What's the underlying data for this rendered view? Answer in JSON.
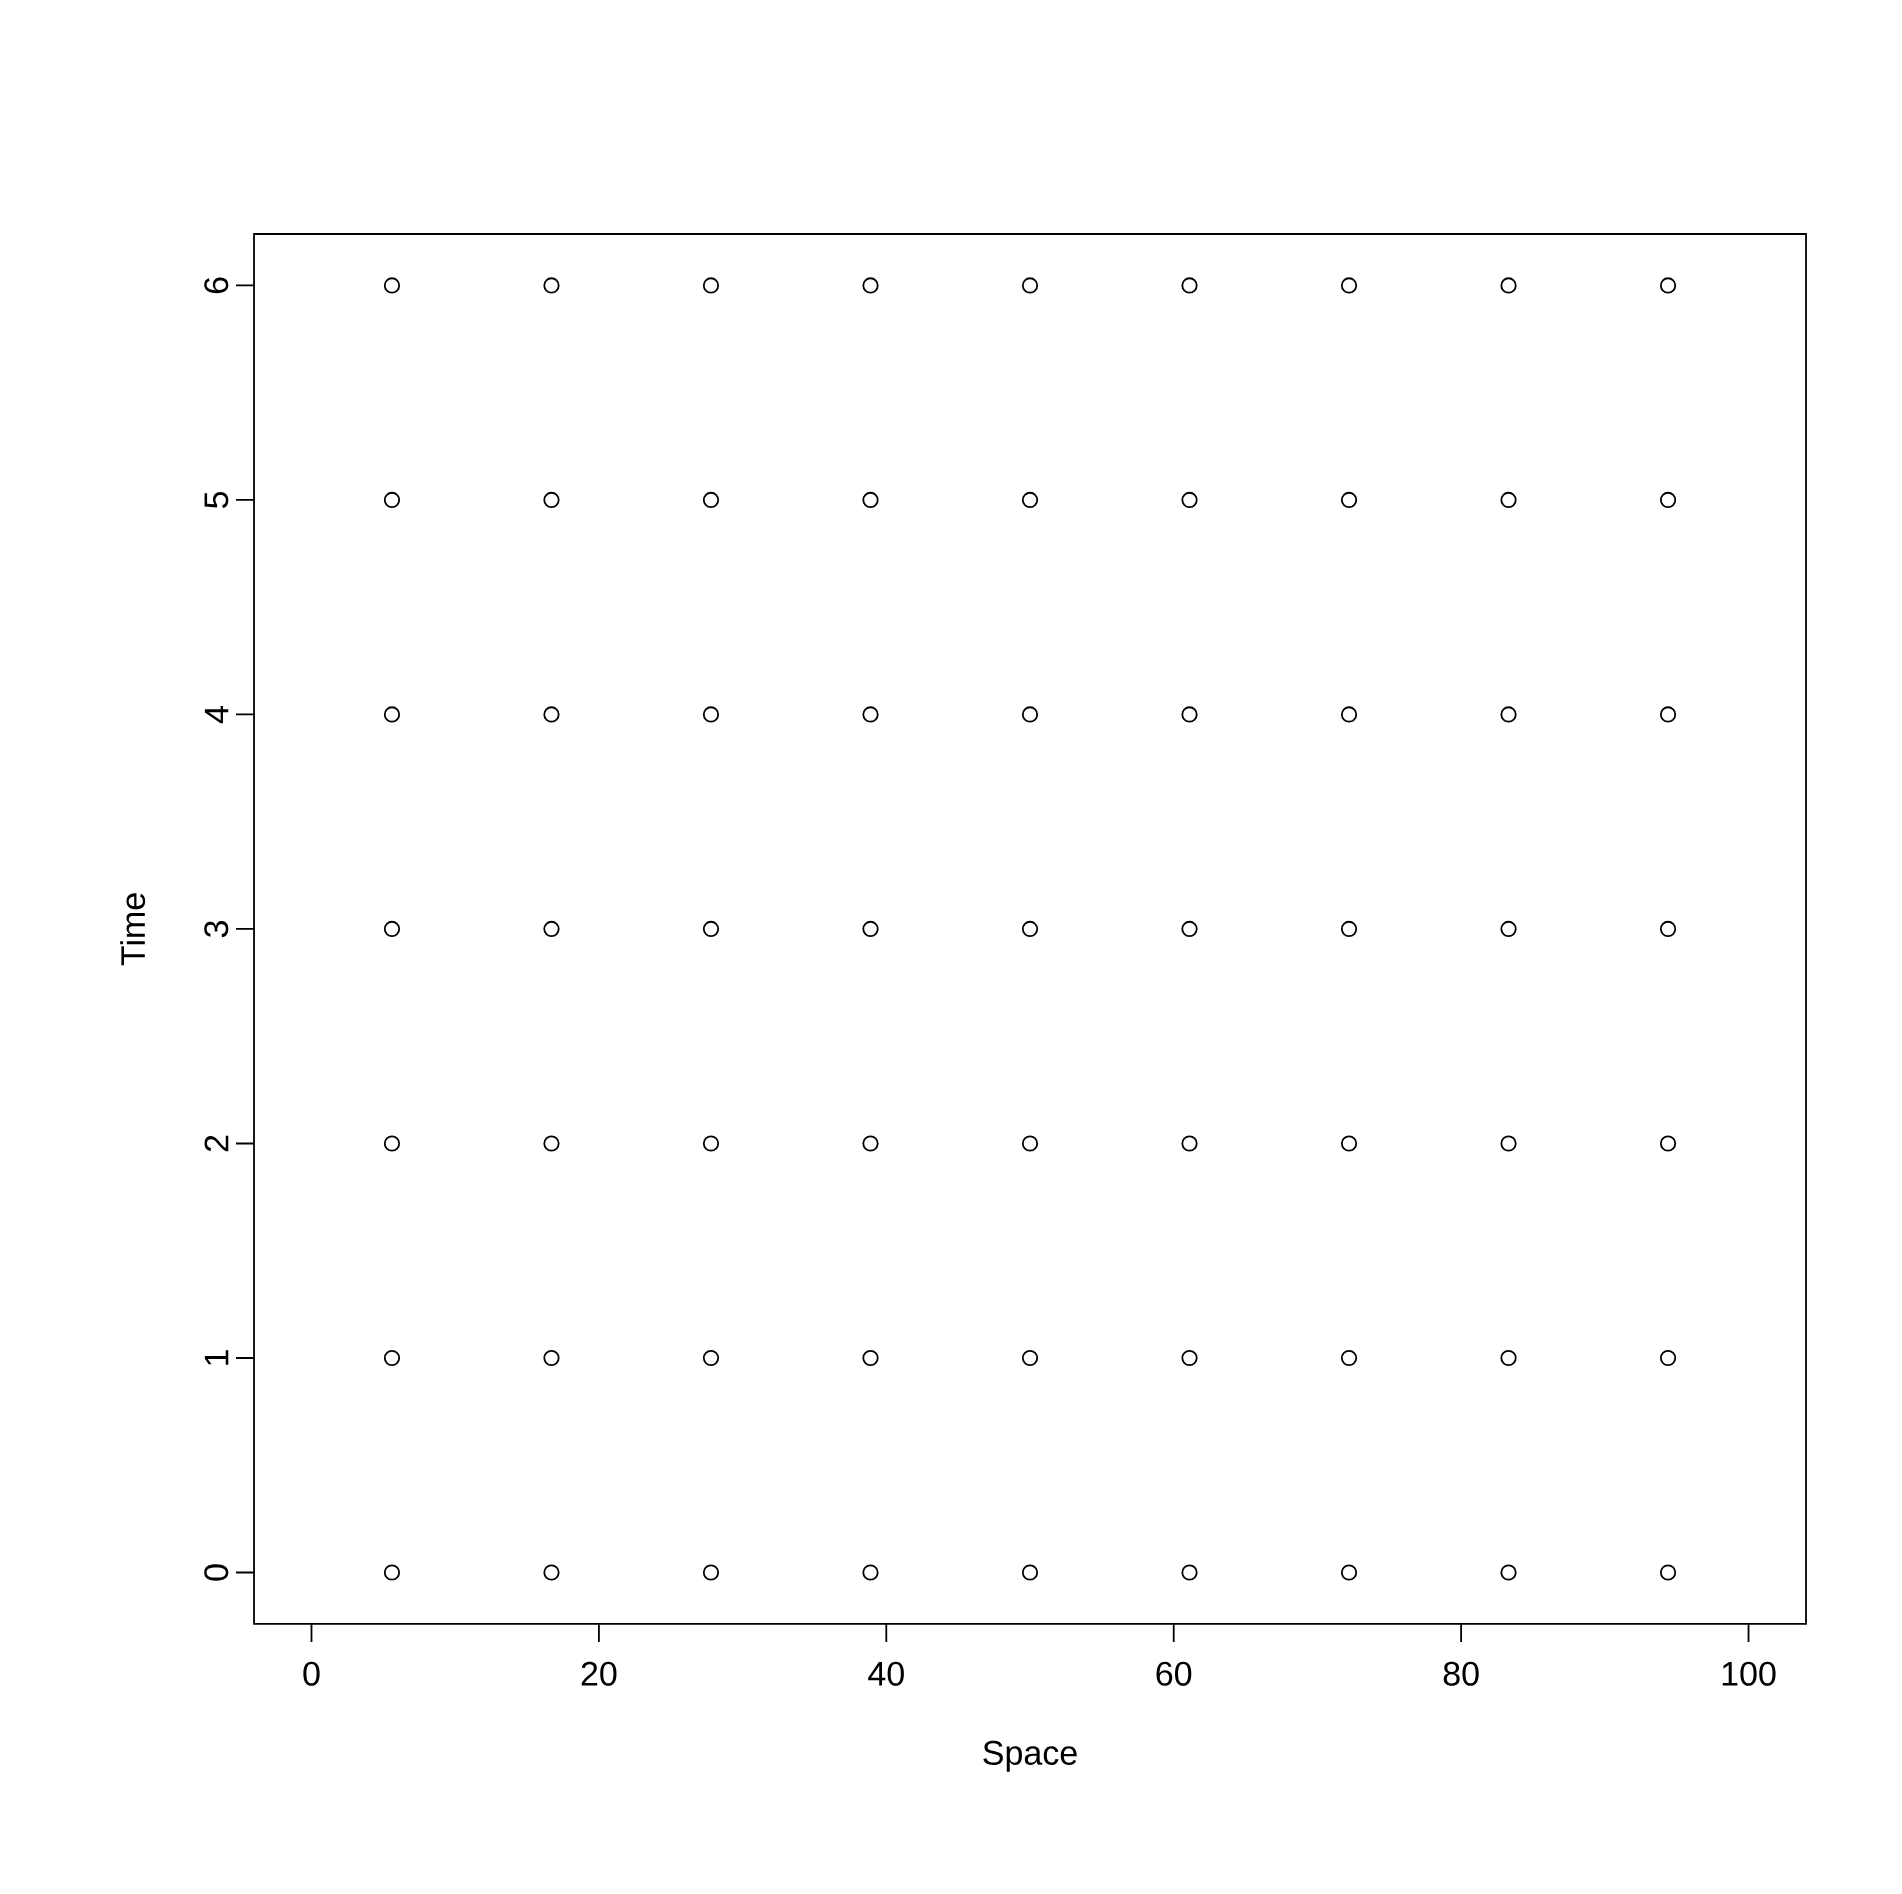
{
  "chart_data": {
    "type": "scatter",
    "xlabel": "Space",
    "ylabel": "Time",
    "x": [
      5.6,
      16.7,
      27.8,
      38.9,
      50,
      61.1,
      72.2,
      83.3,
      94.4,
      5.6,
      16.7,
      27.8,
      38.9,
      50,
      61.1,
      72.2,
      83.3,
      94.4,
      5.6,
      16.7,
      27.8,
      38.9,
      50,
      61.1,
      72.2,
      83.3,
      94.4,
      5.6,
      16.7,
      27.8,
      38.9,
      50,
      61.1,
      72.2,
      83.3,
      94.4,
      5.6,
      16.7,
      27.8,
      38.9,
      50,
      61.1,
      72.2,
      83.3,
      94.4,
      5.6,
      16.7,
      27.8,
      38.9,
      50,
      61.1,
      72.2,
      83.3,
      94.4,
      5.6,
      16.7,
      27.8,
      38.9,
      50,
      61.1,
      72.2,
      83.3,
      94.4
    ],
    "values": [
      0,
      0,
      0,
      0,
      0,
      0,
      0,
      0,
      0,
      1,
      1,
      1,
      1,
      1,
      1,
      1,
      1,
      1,
      2,
      2,
      2,
      2,
      2,
      2,
      2,
      2,
      2,
      3,
      3,
      3,
      3,
      3,
      3,
      3,
      3,
      3,
      4,
      4,
      4,
      4,
      4,
      4,
      4,
      4,
      4,
      5,
      5,
      5,
      5,
      5,
      5,
      5,
      5,
      5,
      6,
      6,
      6,
      6,
      6,
      6,
      6,
      6,
      6
    ],
    "color": "#000000",
    "marker": "circle",
    "grid": false,
    "xlim": [
      -4,
      104
    ],
    "ylim": [
      -0.24,
      6.24
    ],
    "xticks": [
      0,
      20,
      40,
      60,
      80,
      100
    ],
    "yticks": [
      0,
      1,
      2,
      3,
      4,
      5,
      6
    ]
  }
}
